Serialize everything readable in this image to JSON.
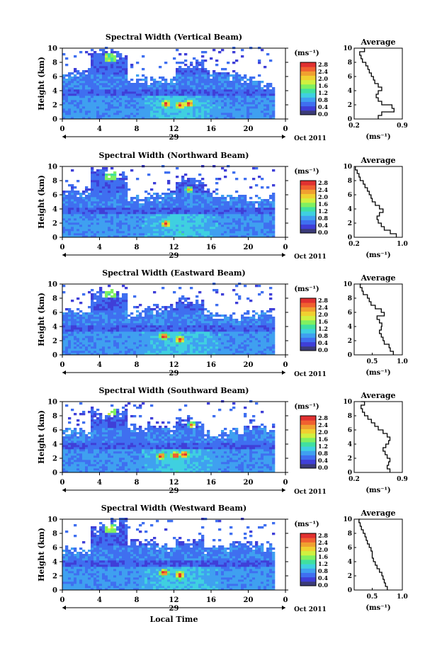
{
  "date_label": "Oct 2011",
  "day_label": "29",
  "x_axis_label": "Local Time",
  "y_axis_label": "Height (km)",
  "colorbar_unit": "(ms⁻¹)",
  "colorbar_ticks": [
    "2.8",
    "2.4",
    "2.0",
    "1.6",
    "1.2",
    "0.8",
    "0.4",
    "0.0"
  ],
  "profile_title": "Average",
  "profile_unit": "(ms⁻¹)",
  "colors": {
    "scale": [
      "#3b3b78",
      "#3f3fd8",
      "#3f6ff0",
      "#3fa0f0",
      "#3fd0e0",
      "#40e0a0",
      "#80f060",
      "#d0f040",
      "#f0d030",
      "#f0a030",
      "#f06030",
      "#e03030"
    ]
  },
  "chart_data": [
    {
      "type": "heatmap",
      "title": "Spectral Width (Vertical Beam)",
      "x_ticks": [
        "0",
        "4",
        "8",
        "12",
        "16",
        "20",
        "0"
      ],
      "xlim": [
        0,
        24
      ],
      "y_ticks": [
        "0",
        "2",
        "4",
        "6",
        "8",
        "10"
      ],
      "ylim": [
        0,
        10
      ],
      "colorbar_range": [
        0.0,
        2.8
      ],
      "hotspots": [
        {
          "x": 11,
          "y": 2.0
        },
        {
          "x": 12.5,
          "y": 1.8
        },
        {
          "x": 13.5,
          "y": 2.0
        }
      ],
      "profile": {
        "xlim": [
          0.2,
          0.9
        ],
        "x_ticks": [
          "0.2",
          "0.9"
        ],
        "height": [
          0,
          0.5,
          1,
          1.5,
          2,
          2.5,
          3,
          3.5,
          4,
          4.5,
          5,
          5.5,
          6,
          6.5,
          7,
          7.5,
          8,
          8.5,
          9,
          9.5,
          10
        ],
        "value": [
          0.55,
          0.6,
          0.78,
          0.75,
          0.6,
          0.55,
          0.52,
          0.55,
          0.6,
          0.55,
          0.5,
          0.48,
          0.45,
          0.42,
          0.4,
          0.37,
          0.32,
          0.3,
          0.28,
          0.35,
          0.3
        ]
      }
    },
    {
      "type": "heatmap",
      "title": "Spectral Width (Northward Beam)",
      "x_ticks": [
        "0",
        "4",
        "8",
        "12",
        "16",
        "20",
        "0"
      ],
      "xlim": [
        0,
        24
      ],
      "y_ticks": [
        "0",
        "2",
        "4",
        "6",
        "8",
        "10"
      ],
      "ylim": [
        0,
        10
      ],
      "colorbar_range": [
        0.0,
        2.8
      ],
      "hotspots": [
        {
          "x": 11,
          "y": 1.8
        },
        {
          "x": 13.5,
          "y": 6.6
        }
      ],
      "profile": {
        "xlim": [
          0.2,
          1.0
        ],
        "x_ticks": [
          "0.2",
          "1.0"
        ],
        "height": [
          0,
          0.5,
          1,
          1.5,
          2,
          2.5,
          3,
          3.5,
          4,
          4.5,
          5,
          5.5,
          6,
          6.5,
          7,
          7.5,
          8,
          8.5,
          9,
          9.5,
          10
        ],
        "value": [
          0.9,
          0.8,
          0.7,
          0.65,
          0.6,
          0.58,
          0.62,
          0.68,
          0.62,
          0.55,
          0.5,
          0.48,
          0.45,
          0.42,
          0.38,
          0.35,
          0.3,
          0.28,
          0.25,
          0.22,
          0.22
        ]
      }
    },
    {
      "type": "heatmap",
      "title": "Spectral Width (Eastward Beam)",
      "x_ticks": [
        "0",
        "4",
        "8",
        "12",
        "16",
        "20",
        "0"
      ],
      "xlim": [
        0,
        24
      ],
      "y_ticks": [
        "0",
        "2",
        "4",
        "6",
        "8",
        "10"
      ],
      "ylim": [
        0,
        10
      ],
      "colorbar_range": [
        0.0,
        2.8
      ],
      "hotspots": [
        {
          "x": 10.8,
          "y": 2.5
        },
        {
          "x": 12.5,
          "y": 2.0
        }
      ],
      "profile": {
        "xlim": [
          0.2,
          1.0
        ],
        "x_ticks": [
          "0.5",
          "1.0"
        ],
        "height": [
          0,
          0.5,
          1,
          1.5,
          2,
          2.5,
          3,
          3.5,
          4,
          4.5,
          5,
          5.5,
          6,
          6.5,
          7,
          7.5,
          8,
          8.5,
          9,
          9.5,
          10
        ],
        "value": [
          0.85,
          0.8,
          0.78,
          0.7,
          0.68,
          0.65,
          0.62,
          0.65,
          0.66,
          0.62,
          0.58,
          0.7,
          0.65,
          0.55,
          0.48,
          0.45,
          0.42,
          0.35,
          0.33,
          0.3,
          0.32
        ]
      }
    },
    {
      "type": "heatmap",
      "title": "Spectral Width (Southward Beam)",
      "x_ticks": [
        "0",
        "4",
        "8",
        "12",
        "16",
        "20",
        "0"
      ],
      "xlim": [
        0,
        24
      ],
      "y_ticks": [
        "0",
        "2",
        "4",
        "6",
        "8",
        "10"
      ],
      "ylim": [
        0,
        10
      ],
      "colorbar_range": [
        0.0,
        2.8
      ],
      "hotspots": [
        {
          "x": 10.5,
          "y": 2.2
        },
        {
          "x": 12,
          "y": 2.3
        },
        {
          "x": 13,
          "y": 2.4
        },
        {
          "x": 13.8,
          "y": 6.6
        }
      ],
      "profile": {
        "xlim": [
          0.2,
          0.9
        ],
        "x_ticks": [
          "0.2",
          "0.9"
        ],
        "height": [
          0,
          0.5,
          1,
          1.5,
          2,
          2.5,
          3,
          3.5,
          4,
          4.5,
          5,
          5.5,
          6,
          6.5,
          7,
          7.5,
          8,
          8.5,
          9,
          9.5,
          10
        ],
        "value": [
          0.72,
          0.68,
          0.7,
          0.72,
          0.68,
          0.65,
          0.62,
          0.66,
          0.7,
          0.72,
          0.68,
          0.62,
          0.55,
          0.5,
          0.45,
          0.4,
          0.35,
          0.32,
          0.3,
          0.35,
          0.3
        ]
      }
    },
    {
      "type": "heatmap",
      "title": "Spectral Width (Westward Beam)",
      "x_ticks": [
        "0",
        "4",
        "8",
        "12",
        "16",
        "20",
        "0"
      ],
      "xlim": [
        0,
        24
      ],
      "y_ticks": [
        "0",
        "2",
        "4",
        "6",
        "8",
        "10"
      ],
      "ylim": [
        0,
        10
      ],
      "colorbar_range": [
        0.0,
        2.8
      ],
      "hotspots": [
        {
          "x": 10.8,
          "y": 2.3
        },
        {
          "x": 12.5,
          "y": 2.0
        }
      ],
      "profile": {
        "xlim": [
          0.2,
          1.0
        ],
        "x_ticks": [
          "0.5",
          "1.0"
        ],
        "height": [
          0,
          0.5,
          1,
          1.5,
          2,
          2.5,
          3,
          3.5,
          4,
          4.5,
          5,
          5.5,
          6,
          6.5,
          7,
          7.5,
          8,
          8.5,
          9,
          9.5,
          10
        ],
        "value": [
          0.75,
          0.72,
          0.7,
          0.68,
          0.66,
          0.62,
          0.58,
          0.55,
          0.52,
          0.5,
          0.5,
          0.48,
          0.45,
          0.42,
          0.4,
          0.38,
          0.35,
          0.32,
          0.3,
          0.28,
          0.3
        ]
      }
    }
  ]
}
